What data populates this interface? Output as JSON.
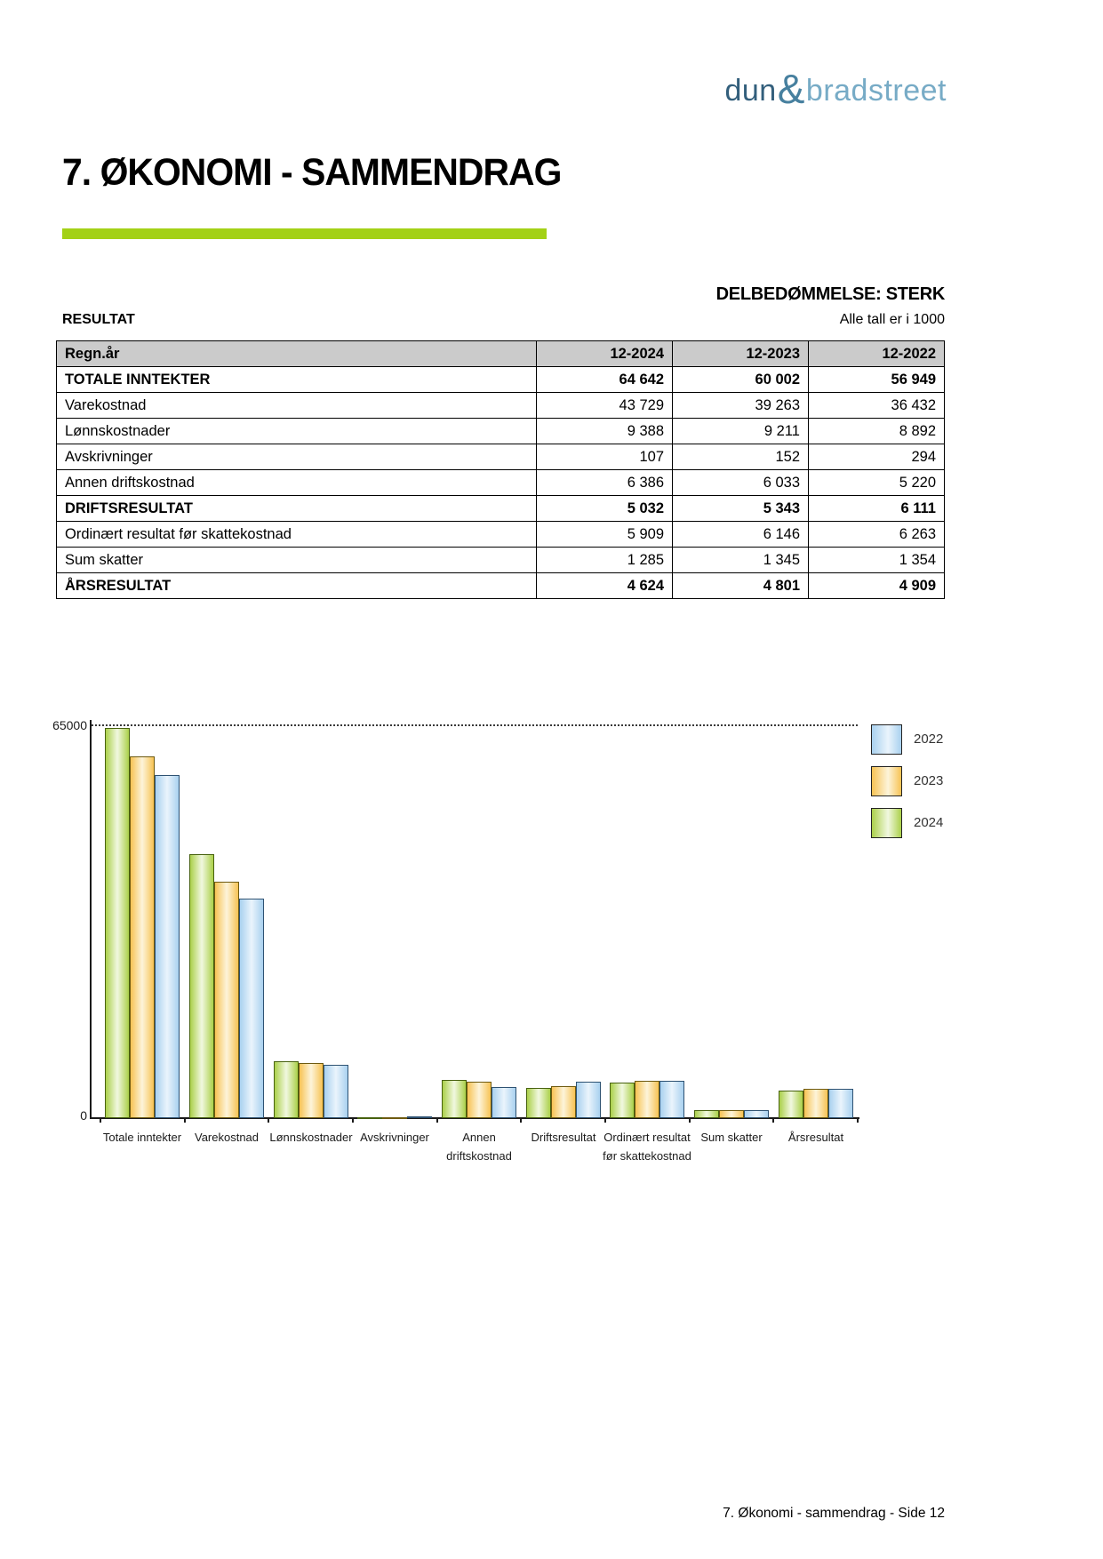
{
  "logo": {
    "dun": "dun",
    "amp": "&",
    "bradstreet": "bradstreet"
  },
  "page": {
    "title": "7. ØKONOMI - SAMMENDRAG",
    "rating": "DELBEDØMMELSE: STERK",
    "section_label": "RESULTAT",
    "units_note": "Alle tall er i 1000",
    "footer": "7. Økonomi - sammendrag - Side 12",
    "accent_green": "#a3d116"
  },
  "table": {
    "header": [
      "Regn.år",
      "12-2024",
      "12-2023",
      "12-2022"
    ],
    "rows": [
      {
        "label": "TOTALE INNTEKTER",
        "values": [
          "64 642",
          "60 002",
          "56 949"
        ],
        "bold": true
      },
      {
        "label": "Varekostnad",
        "values": [
          "43 729",
          "39 263",
          "36 432"
        ],
        "bold": false
      },
      {
        "label": "Lønnskostnader",
        "values": [
          "9 388",
          "9 211",
          "8 892"
        ],
        "bold": false
      },
      {
        "label": "Avskrivninger",
        "values": [
          "107",
          "152",
          "294"
        ],
        "bold": false
      },
      {
        "label": "Annen driftskostnad",
        "values": [
          "6 386",
          "6 033",
          "5 220"
        ],
        "bold": false
      },
      {
        "label": "DRIFTSRESULTAT",
        "values": [
          "5 032",
          "5 343",
          "6 111"
        ],
        "bold": true
      },
      {
        "label": "Ordinært resultat før skattekostnad",
        "values": [
          "5 909",
          "6 146",
          "6 263"
        ],
        "bold": false
      },
      {
        "label": "Sum skatter",
        "values": [
          "1 285",
          "1 345",
          "1 354"
        ],
        "bold": false
      },
      {
        "label": "ÅRSRESULTAT",
        "values": [
          "4 624",
          "4 801",
          "4 909"
        ],
        "bold": true
      }
    ]
  },
  "chart_data": {
    "type": "bar",
    "categories": [
      "Totale inntekter",
      "Varekostnad",
      "Lønnskostnader",
      "Avskrivninger",
      "Annen driftskostnad",
      "Driftsresultat",
      "Ordinært resultat før skattekostnad",
      "Sum skatter",
      "Årsresultat"
    ],
    "series": [
      {
        "name": "2024",
        "color": "#abd04a",
        "light": "#f1f8e0",
        "outline": "#47610f",
        "values": [
          64642,
          43729,
          9388,
          107,
          6386,
          5032,
          5909,
          1285,
          4624
        ]
      },
      {
        "name": "2023",
        "color": "#f7c354",
        "light": "#fdf4da",
        "outline": "#6e5a10",
        "values": [
          60002,
          39263,
          9211,
          152,
          6033,
          5343,
          6146,
          1345,
          4801
        ]
      },
      {
        "name": "2022",
        "color": "#a9d1ef",
        "light": "#eaf4fc",
        "outline": "#2e5272",
        "values": [
          56949,
          36432,
          8892,
          294,
          5220,
          6111,
          6263,
          1354,
          4909
        ]
      }
    ],
    "legend": [
      "2022",
      "2023",
      "2024"
    ],
    "legend_position": "right",
    "ylim": [
      0,
      65000
    ],
    "ytick_top": "65000",
    "ytick_bottom": "0",
    "grid": "dotted line at y-max only"
  }
}
